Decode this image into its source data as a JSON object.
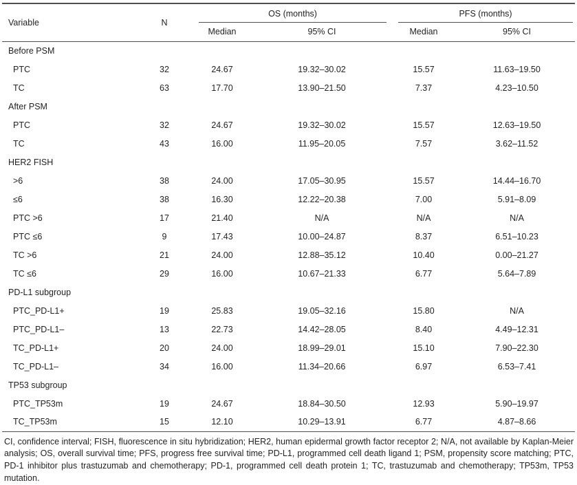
{
  "colors": {
    "text": "#232323",
    "rule": "#4f4f4f",
    "background": "#ffffff"
  },
  "table": {
    "columns": {
      "variable": "Variable",
      "n": "N",
      "os_group": "OS (months)",
      "pfs_group": "PFS (months)",
      "median": "Median",
      "ci": "95% CI"
    },
    "rows": [
      {
        "type": "group",
        "label": "Before PSM"
      },
      {
        "type": "data",
        "label": "PTC",
        "n": "32",
        "os_median": "24.67",
        "os_ci": "19.32–30.02",
        "pfs_median": "15.57",
        "pfs_ci": "11.63–19.50"
      },
      {
        "type": "data",
        "label": "TC",
        "n": "63",
        "os_median": "17.70",
        "os_ci": "13.90–21.50",
        "pfs_median": "7.37",
        "pfs_ci": "4.23–10.50"
      },
      {
        "type": "group",
        "label": "After PSM"
      },
      {
        "type": "data",
        "label": "PTC",
        "n": "32",
        "os_median": "24.67",
        "os_ci": "19.32–30.02",
        "pfs_median": "15.57",
        "pfs_ci": "12.63–19.50"
      },
      {
        "type": "data",
        "label": "TC",
        "n": "43",
        "os_median": "16.00",
        "os_ci": "11.95–20.05",
        "pfs_median": "7.57",
        "pfs_ci": "3.62–11.52"
      },
      {
        "type": "group",
        "label": "HER2 FISH"
      },
      {
        "type": "data",
        "label": ">6",
        "n": "38",
        "os_median": "24.00",
        "os_ci": "17.05–30.95",
        "pfs_median": "15.57",
        "pfs_ci": "14.44–16.70"
      },
      {
        "type": "data",
        "label": "≤6",
        "n": "38",
        "os_median": "16.30",
        "os_ci": "12.22–20.38",
        "pfs_median": "7.00",
        "pfs_ci": "5.91–8.09"
      },
      {
        "type": "data",
        "label": "PTC >6",
        "n": "17",
        "os_median": "21.40",
        "os_ci": "N/A",
        "pfs_median": "N/A",
        "pfs_ci": "N/A"
      },
      {
        "type": "data",
        "label": "PTC ≤6",
        "n": "9",
        "os_median": "17.43",
        "os_ci": "10.00–24.87",
        "pfs_median": "8.37",
        "pfs_ci": "6.51–10.23"
      },
      {
        "type": "data",
        "label": "TC >6",
        "n": "21",
        "os_median": "24.00",
        "os_ci": "12.88–35.12",
        "pfs_median": "10.40",
        "pfs_ci": "0.00–21.27"
      },
      {
        "type": "data",
        "label": "TC ≤6",
        "n": "29",
        "os_median": "16.00",
        "os_ci": "10.67–21.33",
        "pfs_median": "6.77",
        "pfs_ci": "5.64–7.89"
      },
      {
        "type": "group",
        "label": "PD-L1 subgroup"
      },
      {
        "type": "data",
        "label": "PTC_PD-L1+",
        "n": "19",
        "os_median": "25.83",
        "os_ci": "19.05–32.16",
        "pfs_median": "15.80",
        "pfs_ci": "N/A"
      },
      {
        "type": "data",
        "label": "PTC_PD-L1–",
        "n": "13",
        "os_median": "22.73",
        "os_ci": "14.42–28.05",
        "pfs_median": "8.40",
        "pfs_ci": "4.49–12.31"
      },
      {
        "type": "data",
        "label": "TC_PD-L1+",
        "n": "20",
        "os_median": "24.00",
        "os_ci": "18.99–29.01",
        "pfs_median": "15.10",
        "pfs_ci": "7.90–22.30"
      },
      {
        "type": "data",
        "label": "TC_PD-L1–",
        "n": "34",
        "os_median": "16.00",
        "os_ci": "11.34–20.66",
        "pfs_median": "6.97",
        "pfs_ci": "6.53–7.41"
      },
      {
        "type": "group",
        "label": "TP53 subgroup"
      },
      {
        "type": "data",
        "label": "PTC_TP53m",
        "n": "19",
        "os_median": "24.67",
        "os_ci": "18.84–30.50",
        "pfs_median": "12.93",
        "pfs_ci": "5.90–19.97"
      },
      {
        "type": "data",
        "label": "TC_TP53m",
        "n": "15",
        "os_median": "12.10",
        "os_ci": "10.29–13.91",
        "pfs_median": "6.77",
        "pfs_ci": "4.87–8.66"
      }
    ],
    "footnote": "CI, confidence interval; FISH, fluorescence in situ hybridization; HER2, human epidermal growth factor receptor 2; N/A, not available by Kaplan-Meier analysis; OS, overall survival time; PFS, progress free survival time; PD-L1, programmed cell death ligand 1; PSM, propensity score matching; PTC, PD-1 inhibitor plus trastuzumab and chemotherapy; PD-1, programmed cell death protein 1; TC, trastuzumab and chemotherapy; TP53m, TP53 mutation."
  }
}
